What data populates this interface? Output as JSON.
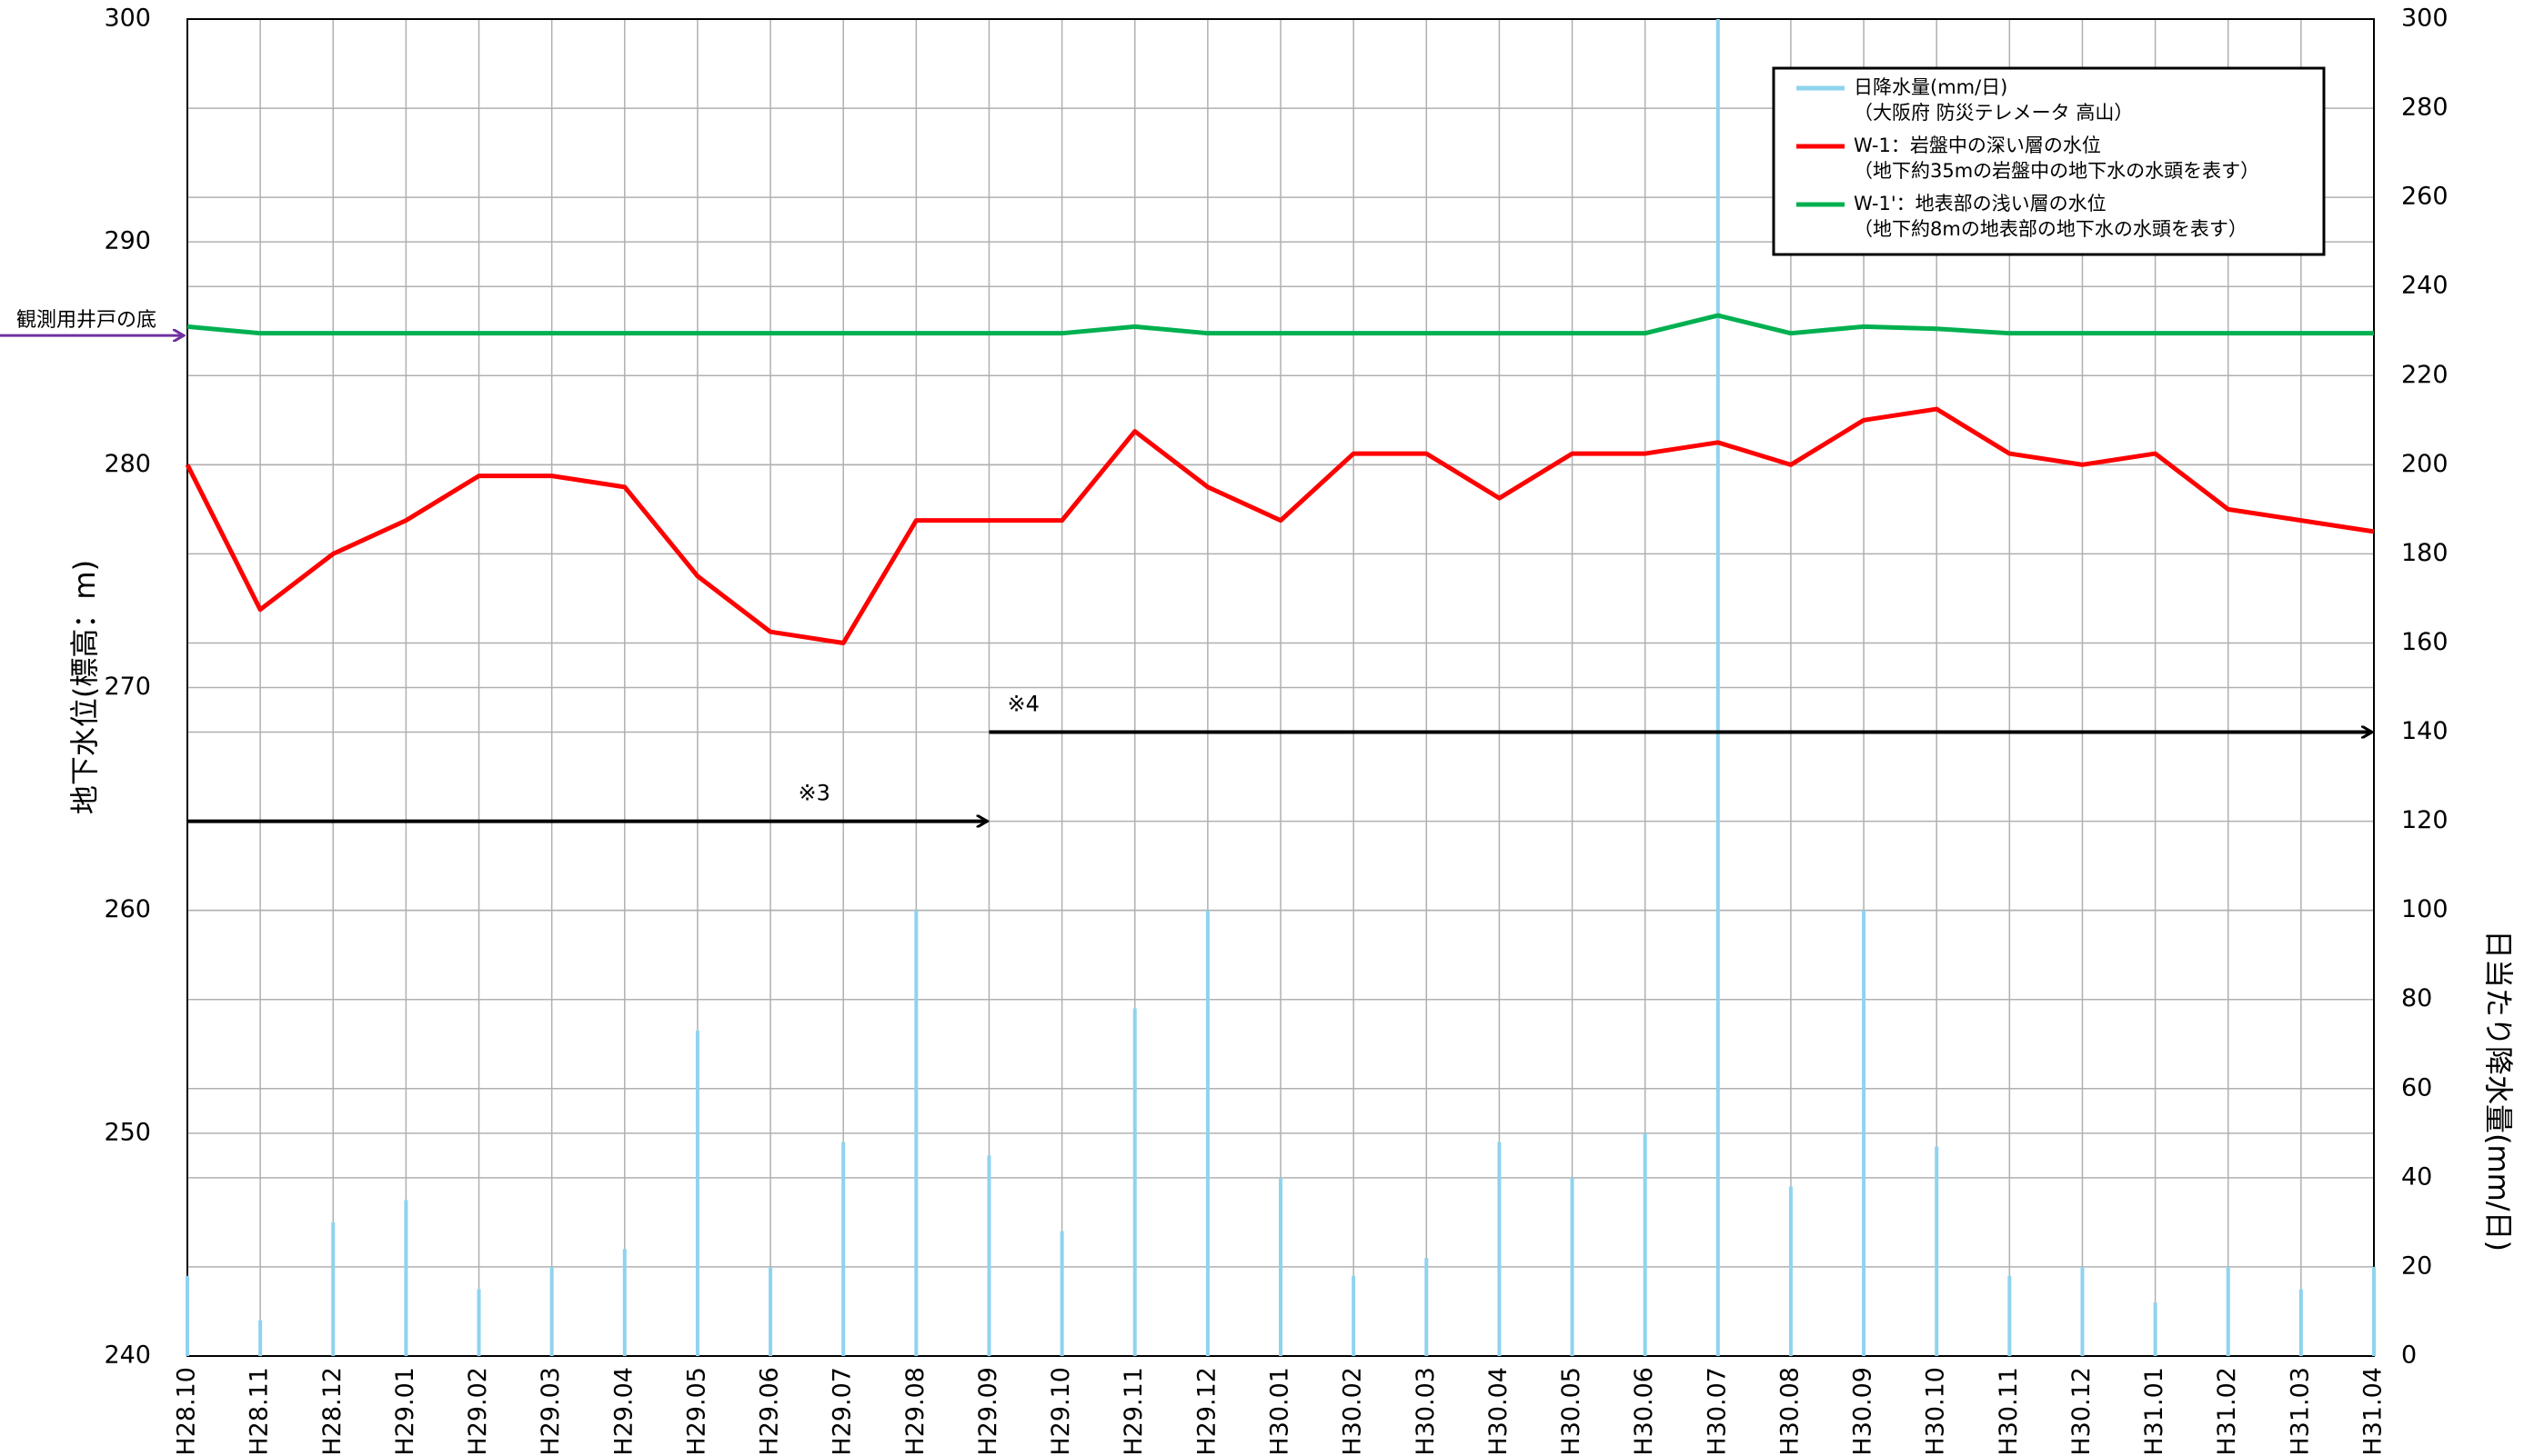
{
  "chart_data": {
    "type": "line",
    "ylabel": "地下水位(標高：m)",
    "y2label": "日当たり降水量(mm/日)",
    "categories": [
      "H28.10",
      "H28.11",
      "H28.12",
      "H29.01",
      "H29.02",
      "H29.03",
      "H29.04",
      "H29.05",
      "H29.06",
      "H29.07",
      "H29.08",
      "H29.09",
      "H29.10",
      "H29.11",
      "H29.12",
      "H30.01",
      "H30.02",
      "H30.03",
      "H30.04",
      "H30.05",
      "H30.06",
      "H30.07",
      "H30.08",
      "H30.09",
      "H30.10",
      "H30.11",
      "H30.12",
      "H31.01",
      "H31.02",
      "H31.03",
      "H31.04"
    ],
    "series": [
      {
        "name": "日降水量(mm/日)",
        "note": "（大阪府 防災テレメータ 高山）",
        "type": "bar",
        "axis": "y2",
        "color": "#8fd3ef",
        "values": [
          18,
          8,
          30,
          35,
          15,
          20,
          24,
          73,
          20,
          48,
          100,
          45,
          28,
          78,
          100,
          40,
          18,
          22,
          48,
          40,
          50,
          300,
          38,
          100,
          47,
          18,
          20,
          12,
          20,
          15,
          20
        ]
      },
      {
        "name": "W-1：岩盤中の深い層の水位",
        "note": "（地下約35mの岩盤中の地下水の水頭を表す）",
        "type": "line",
        "color": "#ff0000",
        "values": [
          280,
          273.5,
          276,
          277.5,
          279.5,
          279.5,
          279,
          275,
          272.5,
          272,
          277.5,
          277.5,
          277.5,
          281.5,
          279,
          277.5,
          280.5,
          280.5,
          278.5,
          280.5,
          280.5,
          281,
          280,
          282,
          282.5,
          280.5,
          280,
          280.5,
          278,
          277.5,
          277
        ]
      },
      {
        "name": "W-1'：地表部の浅い層の水位",
        "note": "（地下約8mの地表部の地下水の水頭を表す）",
        "type": "line",
        "color": "#00b050",
        "values": [
          286.2,
          285.9,
          285.9,
          285.9,
          285.9,
          285.9,
          285.9,
          285.9,
          285.9,
          285.9,
          285.9,
          285.9,
          285.9,
          286.2,
          285.9,
          285.9,
          285.9,
          285.9,
          285.9,
          285.9,
          285.9,
          286.7,
          285.9,
          286.2,
          286.1,
          285.9,
          285.9,
          285.9,
          285.9,
          285.9,
          285.9
        ]
      }
    ],
    "ylim": [
      240,
      300
    ],
    "yticks": [
      240,
      250,
      260,
      270,
      280,
      290,
      300
    ],
    "y2lim": [
      0,
      300
    ],
    "y2ticks": [
      0,
      20,
      40,
      60,
      80,
      100,
      120,
      140,
      160,
      180,
      200,
      220,
      240,
      260,
      280,
      300
    ],
    "grid": true,
    "legend": "upper right",
    "well_bottom": {
      "label": "観測用井戸の底",
      "value": 285.8,
      "color": "#7030a0"
    },
    "annotations": [
      {
        "text": "※3",
        "y2": 120,
        "from": "H28.10",
        "to": "H29.09"
      },
      {
        "text": "※4",
        "y2": 140,
        "from": "H29.09",
        "to": "H31.04"
      }
    ]
  }
}
